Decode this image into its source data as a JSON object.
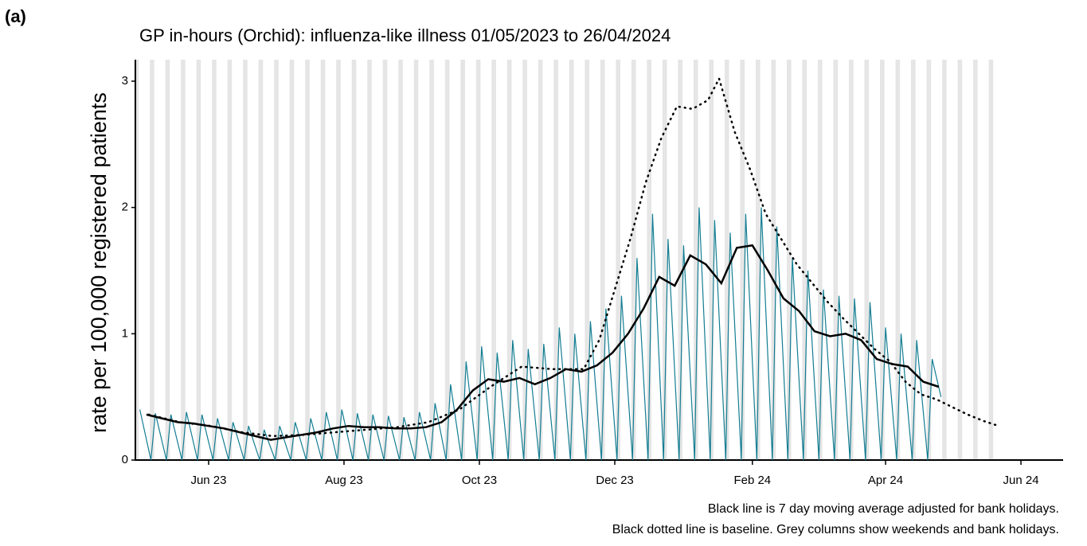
{
  "chart_data": {
    "type": "line",
    "panel_label": "(a)",
    "title": "GP in-hours (Orchid): influenza-like illness 01/05/2023 to 26/04/2024",
    "y_label": "rate per 100,000 registered patients",
    "notes": [
      "Black line is 7 day moving average adjusted for bank holidays.",
      "Black dotted line is baseline. Grey columns show weekends and bank holidays."
    ],
    "xlim": [
      -2,
      416
    ],
    "xticks": [
      {
        "value": 31,
        "label": "Jun 23"
      },
      {
        "value": 92,
        "label": "Aug 23"
      },
      {
        "value": 153,
        "label": "Oct 23"
      },
      {
        "value": 214,
        "label": "Dec 23"
      },
      {
        "value": 276,
        "label": "Feb 24"
      },
      {
        "value": 336,
        "label": "Apr 24"
      },
      {
        "value": 397,
        "label": "Jun 24"
      }
    ],
    "ylim": [
      0,
      3.17
    ],
    "yticks": [
      0,
      1,
      2,
      3
    ],
    "shade_color": "#e5e5e5",
    "series": [
      {
        "color": "#137d92",
        "style": "daily",
        "x": [
          0,
          5,
          7,
          12,
          14,
          19,
          21,
          26,
          28,
          33,
          35,
          40,
          42,
          47,
          49,
          54,
          56,
          61,
          63,
          68,
          70,
          75,
          77,
          82,
          84,
          89,
          91,
          96,
          98,
          103,
          105,
          110,
          112,
          117,
          119,
          124,
          126,
          131,
          133,
          138,
          140,
          145,
          147,
          152,
          154,
          159,
          161,
          166,
          168,
          173,
          175,
          180,
          182,
          187,
          189,
          194,
          196,
          201,
          203,
          208,
          210,
          215,
          217,
          222,
          224,
          229,
          231,
          236,
          238,
          243,
          245,
          250,
          252,
          257,
          259,
          264,
          266,
          271,
          273,
          278,
          280,
          285,
          287,
          292,
          294,
          299,
          301,
          306,
          308,
          313,
          315,
          320,
          322,
          327,
          329,
          334,
          336,
          341,
          343,
          348,
          350,
          355,
          357,
          361
        ],
        "values": [
          0.4,
          0,
          0.37,
          0,
          0.36,
          0,
          0.38,
          0,
          0.36,
          0,
          0.33,
          0,
          0.3,
          0,
          0.27,
          0,
          0.24,
          0,
          0.27,
          0,
          0.3,
          0,
          0.33,
          0,
          0.38,
          0,
          0.4,
          0,
          0.37,
          0,
          0.36,
          0,
          0.35,
          0,
          0.34,
          0,
          0.38,
          0,
          0.45,
          0,
          0.6,
          0,
          0.78,
          0,
          0.9,
          0,
          0.85,
          0,
          0.95,
          0,
          0.88,
          0,
          0.92,
          0,
          1.05,
          0,
          1.0,
          0,
          1.1,
          0,
          1.2,
          0,
          1.3,
          0,
          1.6,
          0,
          1.95,
          0,
          1.75,
          0,
          1.7,
          0,
          2.0,
          0,
          1.9,
          0,
          1.8,
          0,
          1.95,
          0,
          2.0,
          0,
          1.85,
          0,
          1.6,
          0,
          1.5,
          0,
          1.35,
          0,
          1.3,
          0,
          1.28,
          0,
          1.25,
          0,
          1.05,
          0,
          1.0,
          0,
          0.95,
          0,
          0.8,
          0.5
        ]
      },
      {
        "color": "#000000",
        "style": "solid",
        "x": [
          3,
          10,
          17,
          24,
          31,
          38,
          45,
          52,
          59,
          66,
          73,
          80,
          87,
          94,
          101,
          108,
          115,
          122,
          129,
          136,
          143,
          150,
          157,
          164,
          171,
          178,
          185,
          192,
          199,
          206,
          213,
          220,
          227,
          234,
          241,
          248,
          255,
          262,
          269,
          276,
          283,
          290,
          297,
          304,
          311,
          318,
          325,
          332,
          339,
          346,
          353,
          360
        ],
        "values": [
          0.36,
          0.33,
          0.3,
          0.29,
          0.27,
          0.25,
          0.22,
          0.19,
          0.16,
          0.18,
          0.2,
          0.22,
          0.25,
          0.27,
          0.26,
          0.26,
          0.25,
          0.25,
          0.26,
          0.3,
          0.4,
          0.55,
          0.64,
          0.62,
          0.65,
          0.6,
          0.65,
          0.72,
          0.7,
          0.75,
          0.85,
          1.0,
          1.2,
          1.45,
          1.38,
          1.62,
          1.55,
          1.4,
          1.68,
          1.7,
          1.5,
          1.28,
          1.18,
          1.02,
          0.98,
          1.0,
          0.95,
          0.8,
          0.76,
          0.74,
          0.62,
          0.58
        ]
      },
      {
        "color": "#000000",
        "style": "dotted",
        "x": [
          4,
          18,
          32,
          46,
          60,
          74,
          88,
          102,
          116,
          130,
          144,
          158,
          172,
          186,
          200,
          207,
          214,
          221,
          228,
          235,
          242,
          249,
          256,
          261,
          268,
          275,
          282,
          289,
          296,
          303,
          310,
          317,
          324,
          331,
          338,
          345,
          352,
          359,
          366,
          373,
          380,
          387
        ],
        "values": [
          0.36,
          0.3,
          0.27,
          0.22,
          0.19,
          0.2,
          0.22,
          0.24,
          0.26,
          0.3,
          0.4,
          0.58,
          0.74,
          0.72,
          0.72,
          0.95,
          1.35,
          1.75,
          2.2,
          2.55,
          2.8,
          2.78,
          2.85,
          3.02,
          2.6,
          2.3,
          1.95,
          1.75,
          1.55,
          1.4,
          1.25,
          1.12,
          1.0,
          0.88,
          0.78,
          0.62,
          0.52,
          0.48,
          0.42,
          0.36,
          0.31,
          0.27
        ]
      }
    ]
  }
}
